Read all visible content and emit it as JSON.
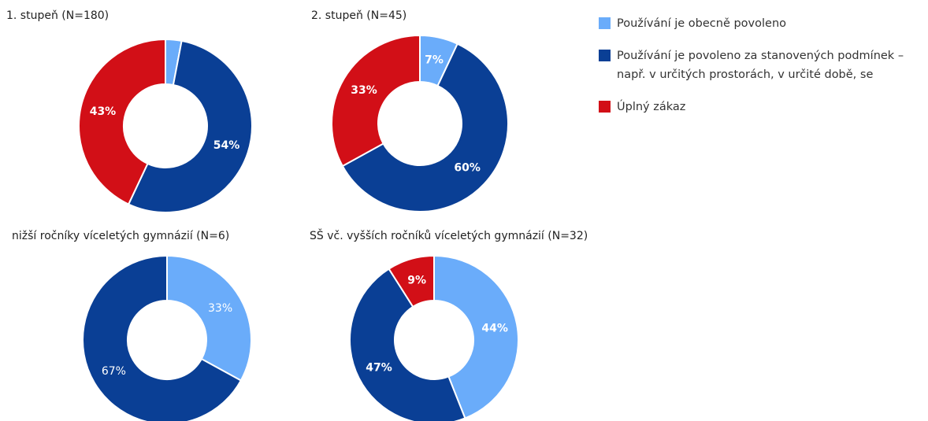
{
  "chart_data": [
    {
      "type": "donut",
      "title": "1. stupeň (N=180)",
      "categories": [
        "Používání je obecně povoleno",
        "Používání je povoleno za stanovených podmínek – např. v určitých prostorách, v určité době, se",
        "Úplný zákaz"
      ],
      "values": [
        3,
        54,
        43
      ],
      "value_labels": [
        "3%",
        "54%",
        "43%"
      ],
      "colors": [
        "#6aacfa",
        "#0a3f95",
        "#d20f17"
      ],
      "label_bold": true
    },
    {
      "type": "donut",
      "title": "2. stupeň (N=45)",
      "categories": [
        "Používání je obecně povoleno",
        "Používání je povoleno za stanovených podmínek – např. v určitých prostorách, v určité době, se",
        "Úplný zákaz"
      ],
      "values": [
        7,
        60,
        33
      ],
      "value_labels": [
        "7%",
        "60%",
        "33%"
      ],
      "colors": [
        "#6aacfa",
        "#0a3f95",
        "#d20f17"
      ],
      "label_bold": true
    },
    {
      "type": "donut",
      "title": "nižší ročníky víceletých gymnázií (N=6)",
      "categories": [
        "Používání je obecně povoleno",
        "Používání je povoleno za stanovených podmínek – např. v určitých prostorách, v určité době, se"
      ],
      "values": [
        33,
        67
      ],
      "value_labels": [
        "33%",
        "67%"
      ],
      "colors": [
        "#6aacfa",
        "#0a3f95"
      ],
      "label_bold": false
    },
    {
      "type": "donut",
      "title": "SŠ vč. vyšších ročníků víceletých gymnázií (N=32)",
      "categories": [
        "Používání je obecně povoleno",
        "Používání je povoleno za stanovených podmínek – např. v určitých prostorách, v určité době, se",
        "Úplný zákaz"
      ],
      "values": [
        44,
        47,
        9
      ],
      "value_labels": [
        "44%",
        "47%",
        "9%"
      ],
      "colors": [
        "#6aacfa",
        "#0a3f95",
        "#d20f17"
      ],
      "label_bold": true
    }
  ]
}
